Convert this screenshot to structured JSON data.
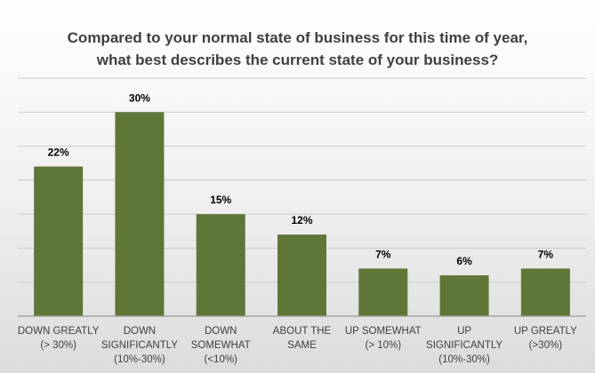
{
  "chart_data": {
    "type": "bar",
    "title_lines": [
      "Compared to your normal state of business for this time of year,",
      "what best describes the current state of your business?"
    ],
    "categories": [
      [
        "DOWN GREATLY",
        "(> 30%)"
      ],
      [
        "DOWN",
        "SIGNIFICANTLY",
        "(10%-30%)"
      ],
      [
        "DOWN",
        "SOMEWHAT",
        "(<10%)"
      ],
      [
        "ABOUT THE",
        "SAME"
      ],
      [
        "UP SOMEWHAT",
        "(> 10%)"
      ],
      [
        "UP",
        "SIGNIFICANTLY",
        "(10%-30%)"
      ],
      [
        "UP GREATLY",
        "(>30%)"
      ]
    ],
    "values": [
      22,
      30,
      15,
      12,
      7,
      6,
      7
    ],
    "data_labels": [
      "22%",
      "30%",
      "15%",
      "12%",
      "7%",
      "6%",
      "7%"
    ],
    "ylim": [
      0,
      35
    ],
    "grid": true,
    "colors": {
      "bar": "#5e7737",
      "grid": "#c8c8c8",
      "axis": "#9a9a9a"
    }
  }
}
